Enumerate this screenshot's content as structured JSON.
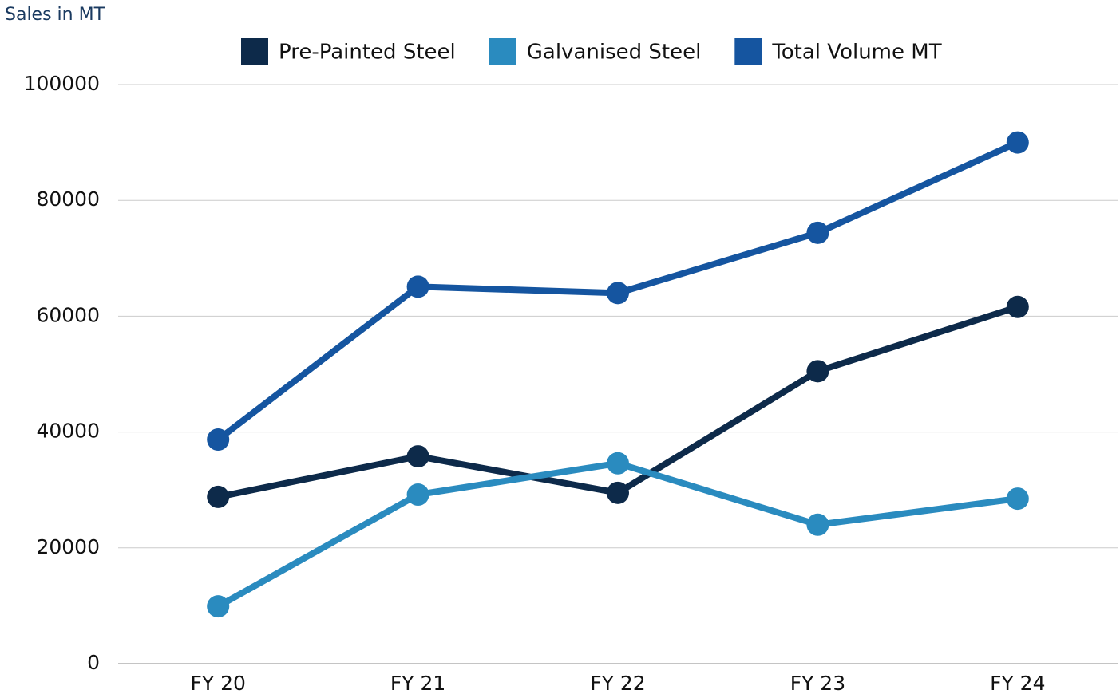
{
  "chart_data": {
    "type": "line",
    "y_axis_label": "Sales in MT",
    "categories": [
      "FY 20",
      "FY 21",
      "FY 22",
      "FY 23",
      "FY 24"
    ],
    "series": [
      {
        "name": "Pre-Painted Steel",
        "color": "#0d2a4a",
        "values": [
          28800,
          35800,
          29500,
          50500,
          61600
        ]
      },
      {
        "name": "Galvanised Steel",
        "color": "#2a8bbf",
        "values": [
          9900,
          29200,
          34600,
          24000,
          28500
        ]
      },
      {
        "name": "Total Volume MT",
        "color": "#1555a0",
        "values": [
          38700,
          65100,
          64000,
          74400,
          90000
        ]
      }
    ],
    "ylim": [
      0,
      100000
    ],
    "yticks": [
      0,
      20000,
      40000,
      60000,
      80000,
      100000
    ],
    "grid": true,
    "legend": "top"
  }
}
